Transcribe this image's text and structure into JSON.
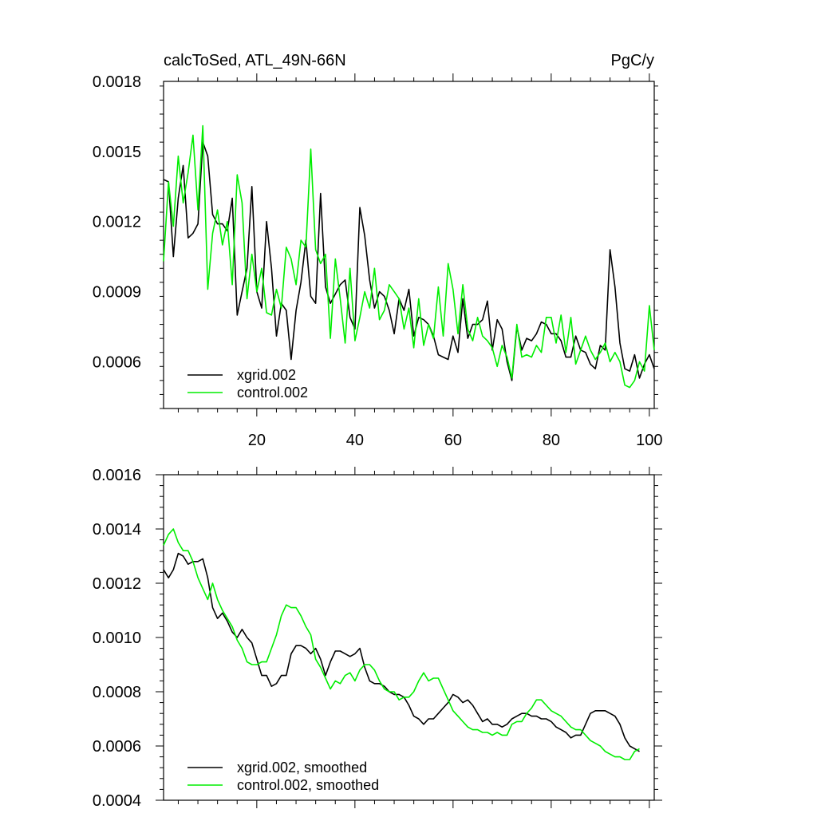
{
  "chart_data": [
    {
      "type": "line",
      "title": "calcToSed, ATL_49N-66N",
      "units": "PgC/y",
      "xlim": [
        1,
        101
      ],
      "ylim": [
        0.0004,
        0.0018
      ],
      "xticks": [
        20,
        40,
        60,
        80,
        100
      ],
      "xtick_labels": [
        "20",
        "40",
        "60",
        "80",
        "100"
      ],
      "yticks": [
        0.0006,
        0.0009,
        0.0012,
        0.0015,
        0.0018
      ],
      "ytick_labels": [
        "0.0006",
        "0.0009",
        "0.0012",
        "0.0015",
        "0.0018"
      ],
      "grid": false,
      "legend_position": "bottom-left",
      "series": [
        {
          "name": "xgrid.002",
          "color": "#000000",
          "x": [
            1,
            2,
            3,
            4,
            5,
            6,
            7,
            8,
            9,
            10,
            11,
            12,
            13,
            14,
            15,
            16,
            17,
            18,
            19,
            20,
            21,
            22,
            23,
            24,
            25,
            26,
            27,
            28,
            29,
            30,
            31,
            32,
            33,
            34,
            35,
            36,
            37,
            38,
            39,
            40,
            41,
            42,
            43,
            44,
            45,
            46,
            47,
            48,
            49,
            50,
            51,
            52,
            53,
            54,
            55,
            56,
            57,
            58,
            59,
            60,
            61,
            62,
            63,
            64,
            65,
            66,
            67,
            68,
            69,
            70,
            71,
            72,
            73,
            74,
            75,
            76,
            77,
            78,
            79,
            80,
            81,
            82,
            83,
            84,
            85,
            86,
            87,
            88,
            89,
            90,
            91,
            92,
            93,
            94,
            95,
            96,
            97,
            98,
            99,
            100,
            101
          ],
          "values": [
            0.00138,
            0.00137,
            0.00105,
            0.0013,
            0.00144,
            0.00113,
            0.00115,
            0.00119,
            0.00154,
            0.00148,
            0.00123,
            0.00119,
            0.00119,
            0.00116,
            0.0013,
            0.0008,
            0.0009,
            0.001,
            0.00135,
            0.0009,
            0.00083,
            0.0012,
            0.001,
            0.00071,
            0.00085,
            0.00082,
            0.00061,
            0.00082,
            0.00094,
            0.00112,
            0.00088,
            0.00085,
            0.00132,
            0.00092,
            0.00085,
            0.00089,
            0.00093,
            0.00095,
            0.00079,
            0.00074,
            0.00126,
            0.00114,
            0.00095,
            0.00083,
            0.0009,
            0.00088,
            0.00082,
            0.00072,
            0.00087,
            0.00082,
            0.00091,
            0.00071,
            0.00079,
            0.00078,
            0.00076,
            0.00071,
            0.00063,
            0.00062,
            0.00061,
            0.00071,
            0.00064,
            0.00087,
            0.0007,
            0.00076,
            0.00076,
            0.00078,
            0.00086,
            0.00065,
            0.00078,
            0.00074,
            0.0006,
            0.00052,
            0.00075,
            0.00065,
            0.0007,
            0.00069,
            0.00072,
            0.00077,
            0.00076,
            0.00072,
            0.00072,
            0.00069,
            0.00062,
            0.00062,
            0.00071,
            0.00065,
            0.00064,
            0.00059,
            0.00057,
            0.00067,
            0.00065,
            0.00108,
            0.00092,
            0.00068,
            0.00057,
            0.00056,
            0.00063,
            0.00053,
            0.00059,
            0.00063,
            0.00057
          ]
        },
        {
          "name": "control.002",
          "color": "#00ee00",
          "x": [
            1,
            2,
            3,
            4,
            5,
            6,
            7,
            8,
            9,
            10,
            11,
            12,
            13,
            14,
            15,
            16,
            17,
            18,
            19,
            20,
            21,
            22,
            23,
            24,
            25,
            26,
            27,
            28,
            29,
            30,
            31,
            32,
            33,
            34,
            35,
            36,
            37,
            38,
            39,
            40,
            41,
            42,
            43,
            44,
            45,
            46,
            47,
            48,
            49,
            50,
            51,
            52,
            53,
            54,
            55,
            56,
            57,
            58,
            59,
            60,
            61,
            62,
            63,
            64,
            65,
            66,
            67,
            68,
            69,
            70,
            71,
            72,
            73,
            74,
            75,
            76,
            77,
            78,
            79,
            80,
            81,
            82,
            83,
            84,
            85,
            86,
            87,
            88,
            89,
            90,
            91,
            92,
            93,
            94,
            95,
            96,
            97,
            98,
            99,
            100,
            101
          ],
          "values": [
            0.00103,
            0.00137,
            0.00118,
            0.00148,
            0.00128,
            0.00141,
            0.00157,
            0.00125,
            0.00161,
            0.00091,
            0.00115,
            0.00125,
            0.0011,
            0.0012,
            0.00093,
            0.0014,
            0.00128,
            0.00087,
            0.00106,
            0.0009,
            0.001,
            0.00081,
            0.0008,
            0.00091,
            0.00083,
            0.00109,
            0.00104,
            0.00093,
            0.00112,
            0.00109,
            0.00151,
            0.00108,
            0.00102,
            0.00106,
            0.0007,
            0.00104,
            0.00087,
            0.00068,
            0.001,
            0.00069,
            0.00079,
            0.0009,
            0.00083,
            0.001,
            0.00078,
            0.00082,
            0.00093,
            0.0009,
            0.00087,
            0.00074,
            0.00083,
            0.00066,
            0.00087,
            0.00067,
            0.00076,
            0.0007,
            0.00092,
            0.00071,
            0.00102,
            0.00091,
            0.00072,
            0.00093,
            0.00074,
            0.00069,
            0.00079,
            0.00071,
            0.00069,
            0.00066,
            0.00058,
            0.00067,
            0.00062,
            0.00053,
            0.00076,
            0.00062,
            0.00063,
            0.00062,
            0.00067,
            0.00064,
            0.00079,
            0.00079,
            0.00068,
            0.0008,
            0.00064,
            0.00079,
            0.00059,
            0.00065,
            0.00071,
            0.00065,
            0.00061,
            0.00064,
            0.00068,
            0.0006,
            0.00064,
            0.0006,
            0.0005,
            0.00049,
            0.00052,
            0.0006,
            0.00056,
            0.00084,
            0.00065
          ]
        }
      ]
    },
    {
      "type": "line",
      "title": "",
      "xlim": [
        1,
        101
      ],
      "ylim": [
        0.0004,
        0.0016
      ],
      "xticks": [
        20,
        40,
        60,
        80,
        100
      ],
      "xtick_labels": [],
      "yticks": [
        0.0004,
        0.0006,
        0.0008,
        0.001,
        0.0012,
        0.0014,
        0.0016
      ],
      "ytick_labels": [
        "0.0004",
        "0.0006",
        "0.0008",
        "0.0010",
        "0.0012",
        "0.0014",
        "0.0016"
      ],
      "grid": false,
      "legend_position": "bottom-left",
      "series": [
        {
          "name": "xgrid.002, smoothed",
          "color": "#000000",
          "x": [
            1,
            2,
            3,
            4,
            5,
            6,
            7,
            8,
            9,
            10,
            11,
            12,
            13,
            14,
            15,
            16,
            17,
            18,
            19,
            20,
            21,
            22,
            23,
            24,
            25,
            26,
            27,
            28,
            29,
            30,
            31,
            32,
            33,
            34,
            35,
            36,
            37,
            38,
            39,
            40,
            41,
            42,
            43,
            44,
            45,
            46,
            47,
            48,
            49,
            50,
            51,
            52,
            53,
            54,
            55,
            56,
            57,
            58,
            59,
            60,
            61,
            62,
            63,
            64,
            65,
            66,
            67,
            68,
            69,
            70,
            71,
            72,
            73,
            74,
            75,
            76,
            77,
            78,
            79,
            80,
            81,
            82,
            83,
            84,
            85,
            86,
            87,
            88,
            89,
            90,
            91,
            92,
            93,
            94,
            95,
            96,
            97,
            98
          ],
          "values": [
            0.00125,
            0.00122,
            0.00125,
            0.00131,
            0.0013,
            0.00127,
            0.00128,
            0.00128,
            0.00129,
            0.00122,
            0.00111,
            0.00107,
            0.00109,
            0.00106,
            0.00102,
            0.001,
            0.00103,
            0.001,
            0.00098,
            0.00092,
            0.00086,
            0.00086,
            0.00082,
            0.00083,
            0.00086,
            0.00086,
            0.00094,
            0.00097,
            0.00097,
            0.00096,
            0.00094,
            0.00096,
            0.00092,
            0.00086,
            0.00091,
            0.00095,
            0.00095,
            0.00094,
            0.00093,
            0.00094,
            0.00096,
            0.00089,
            0.00084,
            0.00083,
            0.00083,
            0.00082,
            0.0008,
            0.00079,
            0.00079,
            0.00078,
            0.00075,
            0.00071,
            0.0007,
            0.00068,
            0.0007,
            0.0007,
            0.00072,
            0.00074,
            0.00076,
            0.00079,
            0.00078,
            0.00076,
            0.00077,
            0.00075,
            0.00072,
            0.00069,
            0.0007,
            0.00068,
            0.00068,
            0.00067,
            0.00068,
            0.0007,
            0.00071,
            0.00072,
            0.00072,
            0.00071,
            0.00071,
            0.0007,
            0.0007,
            0.00069,
            0.00067,
            0.00066,
            0.00065,
            0.00063,
            0.00064,
            0.00064,
            0.00068,
            0.00072,
            0.00073,
            0.00073,
            0.00073,
            0.00072,
            0.00071,
            0.00068,
            0.00063,
            0.0006,
            0.00059,
            0.00058
          ]
        },
        {
          "name": "control.002, smoothed",
          "color": "#00ee00",
          "x": [
            1,
            2,
            3,
            4,
            5,
            6,
            7,
            8,
            9,
            10,
            11,
            12,
            13,
            14,
            15,
            16,
            17,
            18,
            19,
            20,
            21,
            22,
            23,
            24,
            25,
            26,
            27,
            28,
            29,
            30,
            31,
            32,
            33,
            34,
            35,
            36,
            37,
            38,
            39,
            40,
            41,
            42,
            43,
            44,
            45,
            46,
            47,
            48,
            49,
            50,
            51,
            52,
            53,
            54,
            55,
            56,
            57,
            58,
            59,
            60,
            61,
            62,
            63,
            64,
            65,
            66,
            67,
            68,
            69,
            70,
            71,
            72,
            73,
            74,
            75,
            76,
            77,
            78,
            79,
            80,
            81,
            82,
            83,
            84,
            85,
            86,
            87,
            88,
            89,
            90,
            91,
            92,
            93,
            94,
            95,
            96,
            97,
            98
          ],
          "values": [
            0.00134,
            0.00138,
            0.0014,
            0.00135,
            0.00132,
            0.00132,
            0.00128,
            0.00122,
            0.00118,
            0.00114,
            0.0012,
            0.00114,
            0.0011,
            0.00107,
            0.00104,
            0.00099,
            0.00096,
            0.00091,
            0.0009,
            0.0009,
            0.00091,
            0.00091,
            0.00096,
            0.00101,
            0.00108,
            0.00112,
            0.00111,
            0.00111,
            0.00108,
            0.00104,
            0.00101,
            0.00092,
            0.00089,
            0.00085,
            0.00081,
            0.00084,
            0.00083,
            0.00086,
            0.00087,
            0.00084,
            0.00088,
            0.0009,
            0.0009,
            0.00088,
            0.00084,
            0.00081,
            0.0008,
            0.0008,
            0.00077,
            0.00078,
            0.00078,
            0.0008,
            0.00084,
            0.00087,
            0.00084,
            0.00085,
            0.00085,
            0.00081,
            0.00077,
            0.00073,
            0.00071,
            0.00069,
            0.00067,
            0.00066,
            0.00066,
            0.00065,
            0.00065,
            0.00064,
            0.00065,
            0.00064,
            0.00064,
            0.00068,
            0.00069,
            0.00069,
            0.00072,
            0.00074,
            0.00077,
            0.00077,
            0.00075,
            0.00073,
            0.00072,
            0.00071,
            0.00069,
            0.00067,
            0.00066,
            0.00066,
            0.00064,
            0.00062,
            0.00061,
            0.0006,
            0.00058,
            0.00057,
            0.00056,
            0.00056,
            0.00055,
            0.00055,
            0.00058,
            0.00059
          ]
        }
      ]
    }
  ]
}
